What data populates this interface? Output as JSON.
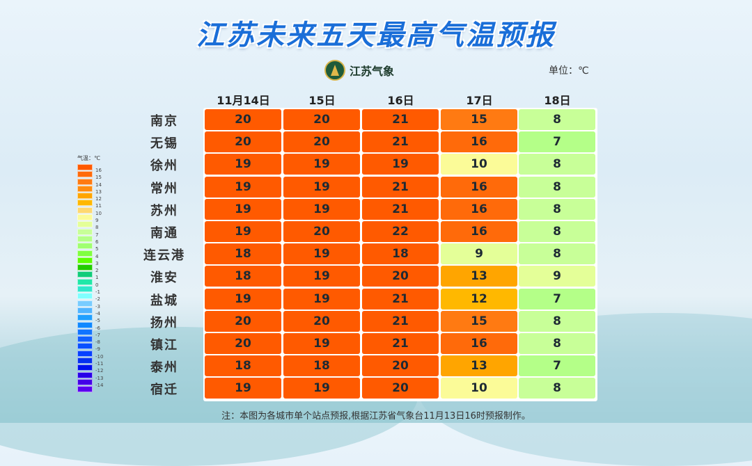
{
  "title": "江苏未来五天最高气温预报",
  "logo_text": "江苏气象",
  "unit_label": "单位：℃",
  "dates": [
    "11月14日",
    "15日",
    "16日",
    "17日",
    "18日"
  ],
  "rows": [
    {
      "city": "南京",
      "temps": [
        20,
        20,
        21,
        15,
        8
      ]
    },
    {
      "city": "无锡",
      "temps": [
        20,
        20,
        21,
        16,
        7
      ]
    },
    {
      "city": "徐州",
      "temps": [
        19,
        19,
        19,
        10,
        8
      ]
    },
    {
      "city": "常州",
      "temps": [
        19,
        19,
        21,
        16,
        8
      ]
    },
    {
      "city": "苏州",
      "temps": [
        19,
        19,
        21,
        16,
        8
      ]
    },
    {
      "city": "南通",
      "temps": [
        19,
        20,
        22,
        16,
        8
      ]
    },
    {
      "city": "连云港",
      "temps": [
        18,
        19,
        18,
        9,
        8
      ]
    },
    {
      "city": "淮安",
      "temps": [
        18,
        19,
        20,
        13,
        9
      ]
    },
    {
      "city": "盐城",
      "temps": [
        19,
        19,
        21,
        12,
        7
      ]
    },
    {
      "city": "扬州",
      "temps": [
        20,
        20,
        21,
        15,
        8
      ]
    },
    {
      "city": "镇江",
      "temps": [
        20,
        19,
        21,
        16,
        8
      ]
    },
    {
      "city": "泰州",
      "temps": [
        18,
        18,
        20,
        13,
        7
      ]
    },
    {
      "city": "宿迁",
      "temps": [
        19,
        19,
        20,
        10,
        8
      ]
    }
  ],
  "legend": {
    "title": "气温：℃",
    "labels": [
      "16",
      "15",
      "14",
      "13",
      "12",
      "11",
      "10",
      "9",
      "8",
      "7",
      "6",
      "5",
      "4",
      "3",
      "2",
      "1",
      "0",
      "-1",
      "-2",
      "-3",
      "-4",
      "-5",
      "-6",
      "-7",
      "-8",
      "-9",
      "-10",
      "-11",
      "-12",
      "-13",
      "-14"
    ],
    "colors": [
      "#ff5a00",
      "#ff6a0a",
      "#ff7a12",
      "#ff8c10",
      "#ffa500",
      "#ffb800",
      "#ffd870",
      "#fbfb98",
      "#e4ff98",
      "#c8ff98",
      "#b4ff88",
      "#a0ff70",
      "#80ff40",
      "#5cff00",
      "#22cc00",
      "#10cc7a",
      "#20e8a8",
      "#30e8cc",
      "#80ffff",
      "#78ccff",
      "#50b4ff",
      "#20a0ff",
      "#1088ff",
      "#1074ff",
      "#1060ff",
      "#0850ff",
      "#0640ff",
      "#0430f0",
      "#0010ee",
      "#2800e8",
      "#4400e8",
      "#5a00f0"
    ]
  },
  "footer": "注：本图为各城市单个站点预报,根据江苏省气象台11月13日16时预报制作。"
}
